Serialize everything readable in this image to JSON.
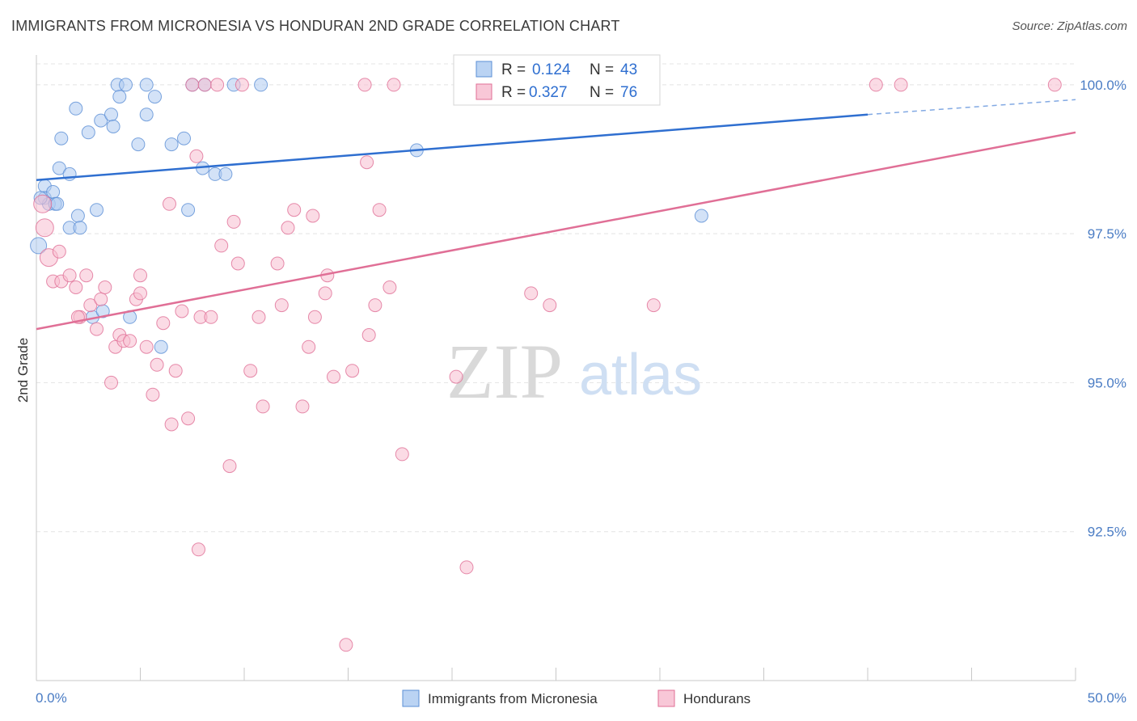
{
  "header": {
    "title": "IMMIGRANTS FROM MICRONESIA VS HONDURAN 2ND GRADE CORRELATION CHART",
    "source": "Source: ZipAtlas.com"
  },
  "watermark": {
    "zip": "ZIP",
    "atlas": "atlas"
  },
  "stats": [
    {
      "r_label": "R =",
      "r_value": "0.124",
      "n_label": "N =",
      "n_value": "43",
      "color": "#a9c8ef"
    },
    {
      "r_label": "R =",
      "r_value": "0.327",
      "n_label": "N =",
      "n_value": "76",
      "color": "#f7b9cc"
    }
  ],
  "chart_data": {
    "type": "scatter",
    "title": "IMMIGRANTS FROM MICRONESIA VS HONDURAN 2ND GRADE CORRELATION CHART",
    "xlabel": "",
    "ylabel": "2nd Grade",
    "xlim": [
      0,
      50
    ],
    "ylim": [
      90.0,
      100.5
    ],
    "x_tick_labels": [
      "0.0%",
      "50.0%"
    ],
    "y_ticks": [
      {
        "value": 92.5,
        "label": "92.5%"
      },
      {
        "value": 95.0,
        "label": "95.0%"
      },
      {
        "value": 97.5,
        "label": "97.5%"
      },
      {
        "value": 100.0,
        "label": "100.0%"
      }
    ],
    "grid": true,
    "legend": "bottom-center",
    "series": [
      {
        "name": "Immigrants from Micronesia",
        "color": "#5b8fd6",
        "fill": "#aecbf1",
        "trend": {
          "x": [
            0,
            40
          ],
          "y": [
            98.4,
            99.5
          ],
          "dashed_to": [
            50,
            99.75
          ]
        },
        "points": [
          [
            0.1,
            97.3
          ],
          [
            0.4,
            98.3
          ],
          [
            0.4,
            98.1
          ],
          [
            0.6,
            98.0
          ],
          [
            0.8,
            98.2
          ],
          [
            0.9,
            98.0
          ],
          [
            1.1,
            98.6
          ],
          [
            1.2,
            99.1
          ],
          [
            1.6,
            98.5
          ],
          [
            1.6,
            97.6
          ],
          [
            1.9,
            99.6
          ],
          [
            2.0,
            97.8
          ],
          [
            2.1,
            97.6
          ],
          [
            2.5,
            99.2
          ],
          [
            2.7,
            96.1
          ],
          [
            2.9,
            97.9
          ],
          [
            3.1,
            99.4
          ],
          [
            3.2,
            96.2
          ],
          [
            3.6,
            99.5
          ],
          [
            3.7,
            99.3
          ],
          [
            3.9,
            100.0
          ],
          [
            4.0,
            99.8
          ],
          [
            4.3,
            100.0
          ],
          [
            4.5,
            96.1
          ],
          [
            4.9,
            99.0
          ],
          [
            5.3,
            99.5
          ],
          [
            5.3,
            100.0
          ],
          [
            5.7,
            99.8
          ],
          [
            6.0,
            95.6
          ],
          [
            6.5,
            99.0
          ],
          [
            7.1,
            99.1
          ],
          [
            7.3,
            97.9
          ],
          [
            7.5,
            100.0
          ],
          [
            8.0,
            98.6
          ],
          [
            8.1,
            100.0
          ],
          [
            8.6,
            98.5
          ],
          [
            9.1,
            98.5
          ],
          [
            9.5,
            100.0
          ],
          [
            10.8,
            100.0
          ],
          [
            18.3,
            98.9
          ],
          [
            32.0,
            97.8
          ],
          [
            0.2,
            98.1
          ],
          [
            1.0,
            98.0
          ]
        ]
      },
      {
        "name": "Hondurans",
        "color": "#e06f96",
        "fill": "#f7bdd0",
        "trend": {
          "x": [
            0,
            50
          ],
          "y": [
            95.9,
            99.2
          ]
        },
        "points": [
          [
            0.3,
            98.0
          ],
          [
            0.4,
            97.6
          ],
          [
            0.6,
            97.1
          ],
          [
            0.8,
            96.7
          ],
          [
            1.1,
            97.2
          ],
          [
            1.2,
            96.7
          ],
          [
            1.6,
            96.8
          ],
          [
            1.9,
            96.6
          ],
          [
            2.1,
            96.1
          ],
          [
            2.4,
            96.8
          ],
          [
            2.6,
            96.3
          ],
          [
            2.9,
            95.9
          ],
          [
            3.1,
            96.4
          ],
          [
            3.3,
            96.6
          ],
          [
            3.6,
            95.0
          ],
          [
            3.8,
            95.6
          ],
          [
            4.0,
            95.8
          ],
          [
            4.2,
            95.7
          ],
          [
            4.5,
            95.7
          ],
          [
            4.8,
            96.4
          ],
          [
            5.0,
            96.8
          ],
          [
            5.3,
            95.6
          ],
          [
            5.6,
            94.8
          ],
          [
            5.8,
            95.3
          ],
          [
            6.1,
            96.0
          ],
          [
            6.4,
            98.0
          ],
          [
            6.5,
            94.3
          ],
          [
            6.7,
            95.2
          ],
          [
            7.0,
            96.2
          ],
          [
            7.3,
            94.4
          ],
          [
            7.5,
            100.0
          ],
          [
            7.7,
            98.8
          ],
          [
            7.8,
            92.2
          ],
          [
            7.9,
            96.1
          ],
          [
            8.1,
            100.0
          ],
          [
            8.4,
            96.1
          ],
          [
            8.7,
            100.0
          ],
          [
            8.9,
            97.3
          ],
          [
            9.3,
            93.6
          ],
          [
            9.5,
            97.7
          ],
          [
            9.7,
            97.0
          ],
          [
            9.9,
            100.0
          ],
          [
            10.3,
            95.2
          ],
          [
            10.7,
            96.1
          ],
          [
            10.9,
            94.6
          ],
          [
            11.6,
            97.0
          ],
          [
            11.8,
            96.3
          ],
          [
            12.1,
            97.6
          ],
          [
            12.4,
            97.9
          ],
          [
            12.8,
            94.6
          ],
          [
            13.1,
            95.6
          ],
          [
            13.3,
            97.8
          ],
          [
            13.4,
            96.1
          ],
          [
            13.9,
            96.5
          ],
          [
            14.0,
            96.8
          ],
          [
            14.3,
            95.1
          ],
          [
            14.9,
            90.6
          ],
          [
            15.2,
            95.2
          ],
          [
            15.8,
            100.0
          ],
          [
            15.9,
            98.7
          ],
          [
            16.0,
            95.8
          ],
          [
            16.3,
            96.3
          ],
          [
            16.5,
            97.9
          ],
          [
            17.0,
            96.6
          ],
          [
            17.2,
            100.0
          ],
          [
            17.6,
            93.8
          ],
          [
            20.2,
            95.1
          ],
          [
            20.7,
            91.9
          ],
          [
            23.8,
            96.5
          ],
          [
            24.7,
            96.3
          ],
          [
            29.7,
            96.3
          ],
          [
            40.4,
            100.0
          ],
          [
            41.6,
            100.0
          ],
          [
            49.0,
            100.0
          ],
          [
            2.0,
            96.1
          ],
          [
            5.0,
            96.5
          ]
        ]
      }
    ]
  }
}
